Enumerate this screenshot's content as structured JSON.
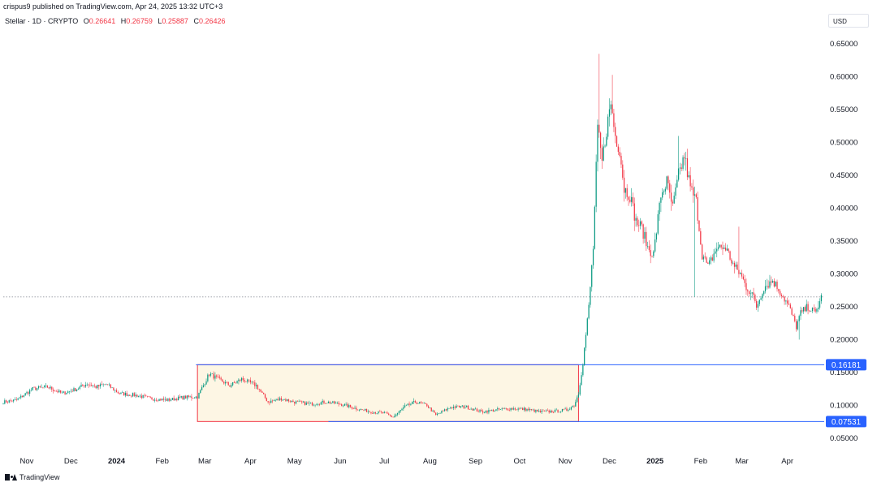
{
  "header": {
    "published_line": "crispus9 published on TradingView.com, Apr 24, 2025 13:32 UTC+3",
    "symbol": "Stellar · 1D · CRYPTO",
    "ohlc": {
      "o_label": "O",
      "o_value": "0.26641",
      "h_label": "H",
      "h_value": "0.26759",
      "l_label": "L",
      "l_value": "0.25887",
      "c_label": "C",
      "c_value": "0.26426"
    },
    "currency": "USD"
  },
  "footer": {
    "brand": "TradingView"
  },
  "colors": {
    "up": "#089981",
    "down": "#f23645",
    "wick": "#9598a1",
    "box_fill": "#fdf6e4",
    "box_border": "#f23645",
    "hline": "#2962ff",
    "last_price_dotted": "#9598a1",
    "axis_text": "#131722"
  },
  "chart_data": {
    "type": "candlestick",
    "symbol": "Stellar",
    "interval": "1D",
    "y_axis": {
      "position": "right",
      "scale": "linear",
      "range": [
        0.03,
        0.67
      ],
      "ticks": [
        0.05,
        0.1,
        0.15,
        0.2,
        0.25,
        0.3,
        0.35,
        0.4,
        0.45,
        0.5,
        0.55,
        0.6,
        0.65
      ],
      "tick_labels": [
        "0.05000",
        "0.10000",
        "0.15000",
        "0.20000",
        "0.25000",
        "0.30000",
        "0.35000",
        "0.40000",
        "0.45000",
        "0.50000",
        "0.55000",
        "0.60000",
        "0.65000"
      ]
    },
    "x_axis": {
      "range": [
        "2023-10-16",
        "2025-04-26"
      ],
      "ticks": [
        {
          "date": "2023-11-01",
          "label": "Nov",
          "bold": false
        },
        {
          "date": "2023-12-01",
          "label": "Dec",
          "bold": false
        },
        {
          "date": "2024-01-01",
          "label": "2024",
          "bold": true
        },
        {
          "date": "2024-02-01",
          "label": "Feb",
          "bold": false
        },
        {
          "date": "2024-03-01",
          "label": "Mar",
          "bold": false
        },
        {
          "date": "2024-04-01",
          "label": "Apr",
          "bold": false
        },
        {
          "date": "2024-05-01",
          "label": "May",
          "bold": false
        },
        {
          "date": "2024-06-01",
          "label": "Jun",
          "bold": false
        },
        {
          "date": "2024-07-01",
          "label": "Jul",
          "bold": false
        },
        {
          "date": "2024-08-01",
          "label": "Aug",
          "bold": false
        },
        {
          "date": "2024-09-01",
          "label": "Sep",
          "bold": false
        },
        {
          "date": "2024-10-01",
          "label": "Oct",
          "bold": false
        },
        {
          "date": "2024-11-01",
          "label": "Nov",
          "bold": false
        },
        {
          "date": "2024-12-01",
          "label": "Dec",
          "bold": false
        },
        {
          "date": "2025-01-01",
          "label": "2025",
          "bold": true
        },
        {
          "date": "2025-02-01",
          "label": "Feb",
          "bold": false
        },
        {
          "date": "2025-03-01",
          "label": "Mar",
          "bold": false
        },
        {
          "date": "2025-04-01",
          "label": "Apr",
          "bold": false
        }
      ]
    },
    "horizontal_lines": [
      {
        "value": 0.16181,
        "label": "0.16181",
        "start": "2024-02-24"
      },
      {
        "value": 0.07531,
        "label": "0.07531",
        "start": "2024-05-24"
      }
    ],
    "last_price_line": 0.265,
    "range_box": {
      "start": "2024-02-25",
      "end": "2024-11-10",
      "top": 0.16181,
      "bottom": 0.07531
    },
    "price_path": [
      [
        "2023-10-16",
        0.105
      ],
      [
        "2023-10-25",
        0.108
      ],
      [
        "2023-11-05",
        0.125
      ],
      [
        "2023-11-15",
        0.128
      ],
      [
        "2023-11-25",
        0.118
      ],
      [
        "2023-12-05",
        0.125
      ],
      [
        "2023-12-12",
        0.133
      ],
      [
        "2023-12-18",
        0.128
      ],
      [
        "2023-12-25",
        0.132
      ],
      [
        "2024-01-03",
        0.118
      ],
      [
        "2024-01-15",
        0.115
      ],
      [
        "2024-01-25",
        0.11
      ],
      [
        "2024-02-05",
        0.108
      ],
      [
        "2024-02-15",
        0.112
      ],
      [
        "2024-02-25",
        0.113
      ],
      [
        "2024-03-04",
        0.148
      ],
      [
        "2024-03-10",
        0.14
      ],
      [
        "2024-03-18",
        0.13
      ],
      [
        "2024-03-26",
        0.14
      ],
      [
        "2024-04-05",
        0.13
      ],
      [
        "2024-04-13",
        0.105
      ],
      [
        "2024-04-22",
        0.11
      ],
      [
        "2024-05-01",
        0.105
      ],
      [
        "2024-05-12",
        0.102
      ],
      [
        "2024-05-22",
        0.105
      ],
      [
        "2024-06-01",
        0.102
      ],
      [
        "2024-06-12",
        0.095
      ],
      [
        "2024-06-22",
        0.09
      ],
      [
        "2024-07-01",
        0.088
      ],
      [
        "2024-07-07",
        0.082
      ],
      [
        "2024-07-15",
        0.098
      ],
      [
        "2024-07-22",
        0.105
      ],
      [
        "2024-07-30",
        0.1
      ],
      [
        "2024-08-05",
        0.085
      ],
      [
        "2024-08-15",
        0.097
      ],
      [
        "2024-08-25",
        0.098
      ],
      [
        "2024-09-05",
        0.09
      ],
      [
        "2024-09-15",
        0.093
      ],
      [
        "2024-09-25",
        0.095
      ],
      [
        "2024-10-05",
        0.094
      ],
      [
        "2024-10-15",
        0.09
      ],
      [
        "2024-10-25",
        0.091
      ],
      [
        "2024-11-02",
        0.093
      ],
      [
        "2024-11-07",
        0.1
      ],
      [
        "2024-11-10",
        0.118
      ],
      [
        "2024-11-13",
        0.165
      ],
      [
        "2024-11-17",
        0.25
      ],
      [
        "2024-11-20",
        0.34
      ],
      [
        "2024-11-23",
        0.52
      ],
      [
        "2024-11-26",
        0.47
      ],
      [
        "2024-11-29",
        0.52
      ],
      [
        "2024-12-02",
        0.56
      ],
      [
        "2024-12-05",
        0.51
      ],
      [
        "2024-12-08",
        0.49
      ],
      [
        "2024-12-11",
        0.43
      ],
      [
        "2024-12-15",
        0.42
      ],
      [
        "2024-12-19",
        0.38
      ],
      [
        "2024-12-23",
        0.37
      ],
      [
        "2024-12-27",
        0.34
      ],
      [
        "2024-12-31",
        0.33
      ],
      [
        "2025-01-05",
        0.42
      ],
      [
        "2025-01-09",
        0.44
      ],
      [
        "2025-01-13",
        0.4
      ],
      [
        "2025-01-17",
        0.45
      ],
      [
        "2025-01-21",
        0.48
      ],
      [
        "2025-01-25",
        0.43
      ],
      [
        "2025-01-29",
        0.41
      ],
      [
        "2025-02-02",
        0.33
      ],
      [
        "2025-02-06",
        0.31
      ],
      [
        "2025-02-12",
        0.34
      ],
      [
        "2025-02-18",
        0.34
      ],
      [
        "2025-02-24",
        0.31
      ],
      [
        "2025-02-28",
        0.3
      ],
      [
        "2025-03-04",
        0.28
      ],
      [
        "2025-03-08",
        0.27
      ],
      [
        "2025-03-11",
        0.25
      ],
      [
        "2025-03-16",
        0.28
      ],
      [
        "2025-03-22",
        0.29
      ],
      [
        "2025-03-28",
        0.27
      ],
      [
        "2025-04-02",
        0.25
      ],
      [
        "2025-04-07",
        0.22
      ],
      [
        "2025-04-10",
        0.24
      ],
      [
        "2025-04-15",
        0.25
      ],
      [
        "2025-04-20",
        0.24
      ],
      [
        "2025-04-24",
        0.264
      ]
    ],
    "spikes": [
      {
        "date": "2024-11-24",
        "high": 0.635
      },
      {
        "date": "2024-12-03",
        "high": 0.603
      },
      {
        "date": "2025-01-17",
        "high": 0.51
      },
      {
        "date": "2025-01-28",
        "low": 0.265
      },
      {
        "date": "2025-02-27",
        "high": 0.372
      },
      {
        "date": "2025-04-09",
        "low": 0.2
      }
    ]
  }
}
